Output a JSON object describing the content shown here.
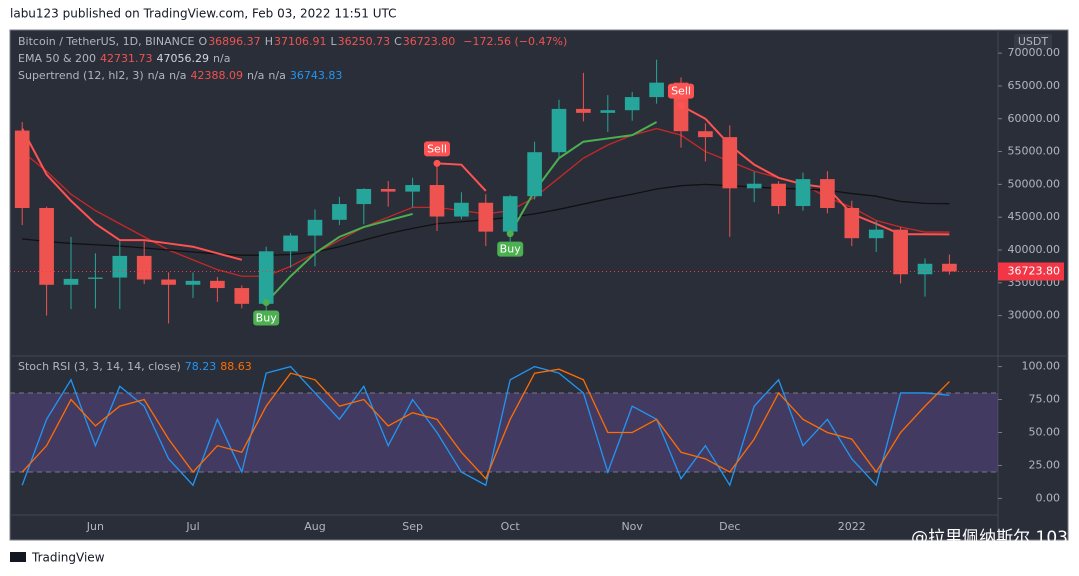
{
  "header": {
    "published": "labu123 published on TradingView.com, Feb 03, 2022 11:51 UTC",
    "symbol": "Bitcoin / TetherUS, 1D, BINANCE",
    "ohlc_names": [
      "O",
      "H",
      "L",
      "C"
    ],
    "ohlc_values": [
      36896.37,
      37106.91,
      36250.73,
      36723.8
    ],
    "ohlc_value_labels": [
      "36896.37",
      "37106.91",
      "36250.73",
      "36723.80"
    ],
    "change": "−172.56 (−0.47%)",
    "ema_name": "EMA 50 & 200",
    "na": "n/a",
    "supertrend_name": "Supertrend (12, hl2, 3)",
    "supertrend_extra": 36743.83,
    "currency": "USDT"
  },
  "footer": {
    "brand": "TradingView",
    "watermark": "@拉里佩纳斯尔 103"
  },
  "chart_data": [
    {
      "type": "candlestick",
      "categories": [
        null,
        null,
        null,
        "Jun",
        null,
        null,
        null,
        "Jul",
        null,
        null,
        null,
        null,
        "Aug",
        null,
        null,
        null,
        "Sep",
        null,
        null,
        null,
        "Oct",
        null,
        null,
        null,
        null,
        "Nov",
        null,
        null,
        null,
        "Dec",
        null,
        null,
        null,
        null,
        "2022",
        null,
        null,
        null,
        null
      ],
      "open": [
        58200,
        46400,
        34700,
        35600,
        35800,
        39100,
        35500,
        34700,
        35300,
        34200,
        31800,
        39800,
        42200,
        44600,
        47000,
        49300,
        48900,
        49900,
        45100,
        47200,
        42800,
        48200,
        54900,
        61500,
        60900,
        61300,
        63300,
        65500,
        58100,
        57200,
        49400,
        50100,
        46700,
        50800,
        46400,
        41800,
        43100,
        36300,
        37900
      ],
      "high": [
        59500,
        46600,
        42000,
        39500,
        41300,
        41300,
        36600,
        36600,
        35900,
        34600,
        40500,
        42600,
        46200,
        48100,
        49400,
        50500,
        51000,
        52900,
        48800,
        48500,
        48400,
        56500,
        62900,
        67000,
        63600,
        64100,
        69000,
        66300,
        59300,
        59000,
        51900,
        50500,
        51800,
        52000,
        47500,
        44400,
        43500,
        38700,
        39300
      ],
      "low": [
        43800,
        30000,
        31000,
        31100,
        31000,
        34800,
        28800,
        32700,
        32100,
        31100,
        29300,
        37300,
        37500,
        43800,
        43900,
        46600,
        46500,
        42900,
        44700,
        40600,
        41300,
        47700,
        54000,
        59600,
        58000,
        59700,
        62300,
        55600,
        53500,
        42000,
        47300,
        45500,
        46000,
        45600,
        40600,
        39700,
        34900,
        32900,
        36250
      ],
      "close": [
        46400,
        34700,
        35600,
        35800,
        39100,
        35500,
        34700,
        35300,
        34200,
        31800,
        39800,
        42200,
        44600,
        47000,
        49300,
        48900,
        49900,
        45100,
        47200,
        42800,
        48200,
        54900,
        61500,
        60900,
        61300,
        63300,
        65500,
        58100,
        57200,
        49400,
        50100,
        46700,
        50800,
        46400,
        41800,
        43100,
        36300,
        37900,
        36723.8
      ],
      "up_color": "#26a69a",
      "down_color": "#ef5350",
      "ema": [
        {
          "color": "#c62828",
          "values": [
            55000,
            52000,
            48500,
            46000,
            44000,
            42000,
            40000,
            38500,
            37000,
            36000,
            36000,
            37500,
            39500,
            41500,
            43500,
            45000,
            46500,
            46500,
            46000,
            45500,
            46000,
            48000,
            51000,
            54000,
            56000,
            57500,
            58500,
            57500,
            55000,
            53500,
            52000,
            51000,
            50000,
            48000,
            46500,
            44500,
            43500,
            42731.73,
            42731.73
          ]
        },
        {
          "color": "#111111",
          "values": [
            41700,
            41300,
            41000,
            40800,
            40600,
            40300,
            40000,
            39700,
            39400,
            39200,
            39200,
            39300,
            39700,
            40500,
            41500,
            42500,
            43300,
            44000,
            44300,
            44600,
            45000,
            45500,
            46200,
            47000,
            47800,
            48500,
            49300,
            49800,
            50000,
            49800,
            49600,
            49400,
            49300,
            49100,
            48600,
            48200,
            47400,
            47100,
            47056.29
          ]
        }
      ],
      "supertrend": {
        "down": {
          "color": "#ff5252",
          "values": [
            58500,
            51500,
            47500,
            44000,
            41500,
            41500,
            41000,
            40500,
            39500,
            38500,
            null,
            null,
            null,
            null,
            null,
            null,
            null,
            53200,
            53000,
            49000,
            null,
            null,
            null,
            null,
            null,
            null,
            null,
            62000,
            60000,
            56000,
            53000,
            51000,
            50000,
            49500,
            45500,
            44000,
            42400,
            42400,
            42388.09
          ]
        },
        "up": {
          "color": "#4caf50",
          "values": [
            null,
            null,
            null,
            null,
            null,
            null,
            null,
            null,
            null,
            null,
            32000,
            36000,
            39500,
            42000,
            43500,
            44500,
            45500,
            null,
            null,
            null,
            42500,
            49000,
            54000,
            56500,
            57000,
            57500,
            59500,
            null,
            null,
            null,
            null,
            null,
            null,
            null,
            null,
            null,
            null,
            null,
            null
          ]
        }
      },
      "signals": {
        "buy": "Buy",
        "sell": "Sell"
      },
      "ylim": [
        24000,
        72000
      ],
      "yticks": [
        {
          "value": 30000,
          "label": "30000.00"
        },
        {
          "value": 35000,
          "label": "35000.00"
        },
        {
          "value": 40000,
          "label": "40000.00"
        },
        {
          "value": 45000,
          "label": "45000.00"
        },
        {
          "value": 50000,
          "label": "50000.00"
        },
        {
          "value": 55000,
          "label": "55000.00"
        },
        {
          "value": 60000,
          "label": "60000.00"
        },
        {
          "value": 65000,
          "label": "65000.00"
        },
        {
          "value": 70000,
          "label": "70000.00"
        }
      ],
      "last_color": "#f23645"
    },
    {
      "type": "line",
      "title": "Stoch RSI (3, 3, 14, 14, close)",
      "series": [
        {
          "color": "#2196f3",
          "values": [
            10,
            60,
            90,
            40,
            85,
            70,
            30,
            10,
            60,
            20,
            95,
            100,
            80,
            60,
            85,
            40,
            75,
            50,
            20,
            10,
            90,
            100,
            95,
            80,
            20,
            70,
            60,
            15,
            40,
            10,
            70,
            90,
            40,
            60,
            30,
            10,
            80,
            80,
            78.23
          ]
        },
        {
          "color": "#ff6d00",
          "values": [
            20,
            40,
            75,
            55,
            70,
            75,
            45,
            20,
            40,
            35,
            70,
            95,
            90,
            70,
            75,
            55,
            65,
            60,
            35,
            15,
            60,
            95,
            98,
            90,
            50,
            50,
            60,
            35,
            30,
            20,
            45,
            80,
            60,
            50,
            45,
            20,
            50,
            70,
            88.63
          ]
        }
      ],
      "band": [
        20,
        80
      ],
      "band_color": "#7e57c2",
      "ylim": [
        -5,
        105
      ],
      "yticks": [
        {
          "value": 0,
          "label": "0.00"
        },
        {
          "value": 25,
          "label": "25.00"
        },
        {
          "value": 50,
          "label": "50.00"
        },
        {
          "value": 75,
          "label": "75.00"
        },
        {
          "value": 100,
          "label": "100.00"
        }
      ]
    }
  ]
}
